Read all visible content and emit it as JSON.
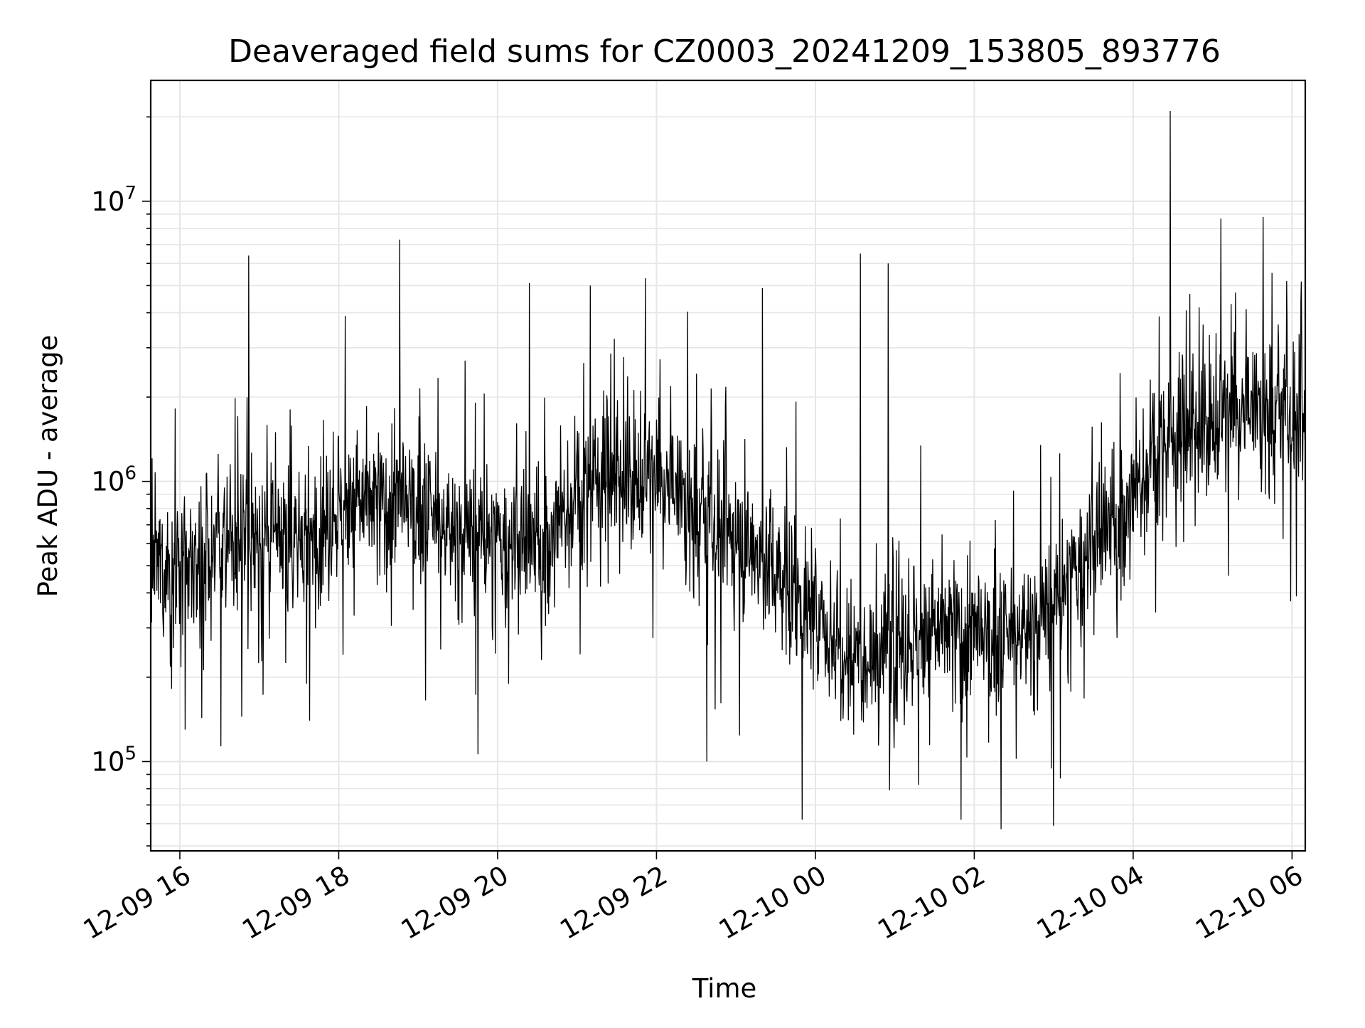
{
  "chart_data": {
    "type": "line",
    "title": "Deaveraged field sums for CZ0003_20241209_153805_893776",
    "xlabel": "Time",
    "ylabel": "Peak ADU - average",
    "y_scale": "log",
    "ylim": [
      48000,
      27000000
    ],
    "xlim": [
      "2024-12-09 15:38",
      "2024-12-10 06:10"
    ],
    "x_ticks": [
      "2024-12-09 16:00",
      "2024-12-09 18:00",
      "2024-12-09 20:00",
      "2024-12-09 22:00",
      "2024-12-10 00:00",
      "2024-12-10 02:00",
      "2024-12-10 04:00",
      "2024-12-10 06:00"
    ],
    "x_tick_labels": [
      "12-09 16",
      "12-09 18",
      "12-09 20",
      "12-09 22",
      "12-10 00",
      "12-10 02",
      "12-10 04",
      "12-10 06"
    ],
    "y_ticks": [
      100000,
      1000000,
      10000000
    ],
    "y_tick_labels": [
      {
        "base": "10",
        "exp": "5"
      },
      {
        "base": "10",
        "exp": "6"
      },
      {
        "base": "10",
        "exp": "7"
      }
    ],
    "grid": true,
    "line_color": "#000000",
    "grid_color": "#e6e6e6",
    "series": [
      {
        "x": [
          "2024-12-09 15:38",
          "2024-12-09 15:50",
          "2024-12-09 16:00",
          "2024-12-09 16:20",
          "2024-12-09 16:40",
          "2024-12-09 17:00",
          "2024-12-09 17:20",
          "2024-12-09 17:40",
          "2024-12-09 18:00",
          "2024-12-09 18:20",
          "2024-12-09 18:40",
          "2024-12-09 19:00",
          "2024-12-09 19:20",
          "2024-12-09 19:40",
          "2024-12-09 20:00",
          "2024-12-09 20:20",
          "2024-12-09 20:40",
          "2024-12-09 21:00",
          "2024-12-09 21:20",
          "2024-12-09 21:40",
          "2024-12-09 22:00",
          "2024-12-09 22:20",
          "2024-12-09 22:40",
          "2024-12-09 23:00",
          "2024-12-09 23:20",
          "2024-12-09 23:40",
          "2024-12-10 00:00",
          "2024-12-10 00:20",
          "2024-12-10 00:40",
          "2024-12-10 01:00",
          "2024-12-10 01:20",
          "2024-12-10 01:40",
          "2024-12-10 02:00",
          "2024-12-10 02:20",
          "2024-12-10 02:40",
          "2024-12-10 03:00",
          "2024-12-10 03:20",
          "2024-12-10 03:40",
          "2024-12-10 04:00",
          "2024-12-10 04:20",
          "2024-12-10 04:40",
          "2024-12-10 05:00",
          "2024-12-10 05:20",
          "2024-12-10 05:40",
          "2024-12-10 06:00",
          "2024-12-10 06:10"
        ],
        "y": [
          500000,
          480000,
          470000,
          550000,
          600000,
          620000,
          590000,
          650000,
          800000,
          850000,
          820000,
          780000,
          680000,
          640000,
          600000,
          570000,
          620000,
          900000,
          1100000,
          1050000,
          1000000,
          850000,
          700000,
          620000,
          540000,
          420000,
          320000,
          260000,
          250000,
          260000,
          280000,
          300000,
          270000,
          260000,
          300000,
          350000,
          500000,
          650000,
          850000,
          1400000,
          1550000,
          1650000,
          1700000,
          1800000,
          1650000,
          1500000
        ]
      }
    ],
    "spikes": [
      {
        "x": "2024-12-09 16:52",
        "y": 6400000
      },
      {
        "x": "2024-12-09 18:46",
        "y": 7300000
      },
      {
        "x": "2024-12-09 20:24",
        "y": 5100000
      },
      {
        "x": "2024-12-09 21:10",
        "y": 5000000
      },
      {
        "x": "2024-12-09 23:20",
        "y": 4900000
      },
      {
        "x": "2024-12-10 00:34",
        "y": 6500000
      },
      {
        "x": "2024-12-10 00:55",
        "y": 6000000
      },
      {
        "x": "2024-12-10 04:28",
        "y": 21000000
      },
      {
        "x": "2024-12-10 05:14",
        "y": 4300000
      }
    ],
    "dips": [
      {
        "x": "2024-12-09 16:04",
        "y": 130000
      },
      {
        "x": "2024-12-09 17:38",
        "y": 140000
      },
      {
        "x": "2024-12-09 22:38",
        "y": 100000
      },
      {
        "x": "2024-12-09 23:50",
        "y": 62000
      },
      {
        "x": "2024-12-10 00:56",
        "y": 79000
      },
      {
        "x": "2024-12-10 01:50",
        "y": 62000
      },
      {
        "x": "2024-12-10 03:05",
        "y": 87000
      }
    ]
  }
}
